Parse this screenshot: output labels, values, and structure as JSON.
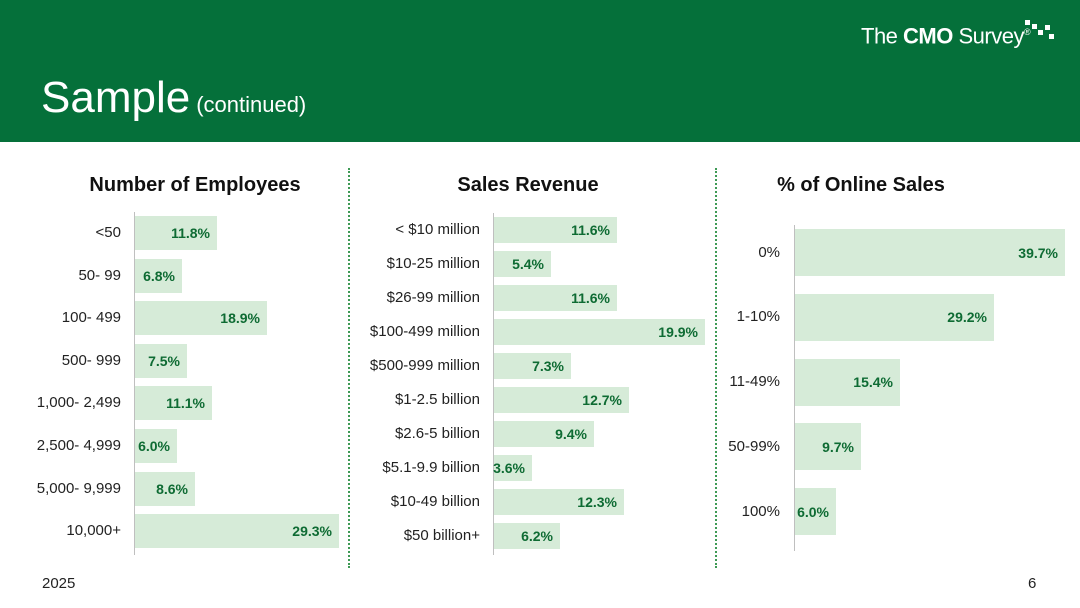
{
  "header": {
    "title": "Sample",
    "subtitle": "(continued)",
    "logo_prefix": "The ",
    "logo_bold": "CMO",
    "logo_suffix": " Survey",
    "logo_mark": "®"
  },
  "footer": {
    "year": "2025",
    "page": "6"
  },
  "colors": {
    "header_bg": "#05703a",
    "bar": "#d6ebd8",
    "value_text": "#0e6b33",
    "divider": "#3e9a55"
  },
  "chart_data": [
    {
      "type": "bar",
      "orientation": "horizontal",
      "title": "Number of Employees",
      "categories": [
        "<50",
        "50- 99",
        "100- 499",
        "500- 999",
        "1,000- 2,499",
        "2,500- 4,999",
        "5,000- 9,999",
        "10,000+"
      ],
      "values": [
        11.8,
        6.8,
        18.9,
        7.5,
        11.1,
        6.0,
        8.6,
        29.3
      ],
      "labels": [
        "11.8%",
        "6.8%",
        "18.9%",
        "7.5%",
        "11.1%",
        "6.0%",
        "8.6%",
        "29.3%"
      ],
      "xlim": [
        0,
        29.3
      ]
    },
    {
      "type": "bar",
      "orientation": "horizontal",
      "title": "Sales Revenue",
      "categories": [
        "< $10 million",
        "$10-25 million",
        "$26-99 million",
        "$100-499 million",
        "$500-999 million",
        "$1-2.5 billion",
        "$2.6-5 billion",
        "$5.1-9.9 billion",
        "$10-49 billion",
        "$50 billion+"
      ],
      "values": [
        11.6,
        5.4,
        11.6,
        19.9,
        7.3,
        12.7,
        9.4,
        3.6,
        12.3,
        6.2
      ],
      "labels": [
        "11.6%",
        "5.4%",
        "11.6%",
        "19.9%",
        "7.3%",
        "12.7%",
        "9.4%",
        "3.6%",
        "12.3%",
        "6.2%"
      ],
      "xlim": [
        0,
        19.9
      ]
    },
    {
      "type": "bar",
      "orientation": "horizontal",
      "title": "% of Online Sales",
      "categories": [
        "0%",
        "1-10%",
        "11-49%",
        "50-99%",
        "100%"
      ],
      "values": [
        39.7,
        29.2,
        15.4,
        9.7,
        6.0
      ],
      "labels": [
        "39.7%",
        "29.2%",
        "15.4%",
        "9.7%",
        "6.0%"
      ],
      "xlim": [
        0,
        39.7
      ]
    }
  ]
}
